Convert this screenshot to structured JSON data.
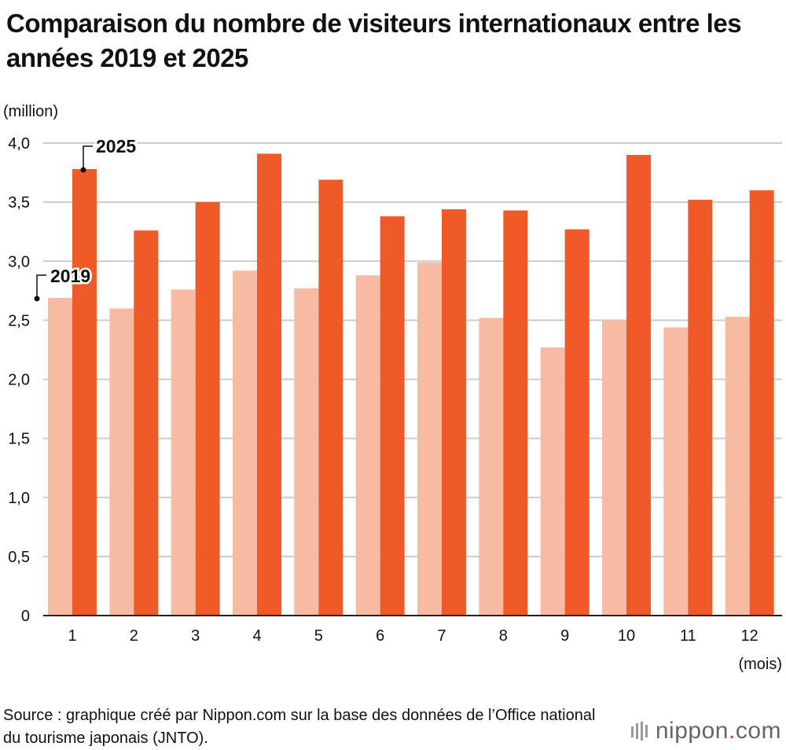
{
  "title": "Comparaison du nombre de visiteurs internationaux entre les années 2019 et 2025",
  "source": "Source : graphique créé par Nippon.com sur la base des données de l’Office national du tourisme japonais (JNTO).",
  "brand": {
    "name": "nippon",
    "dot": ".",
    "suffix": "com"
  },
  "colors": {
    "series_2019": "#f7bba4",
    "series_2025": "#f05a28",
    "grid": "#cccccc",
    "axis": "#222222"
  },
  "chart_data": {
    "type": "bar",
    "title": "Comparaison du nombre de visiteurs internationaux entre les années 2019 et 2025",
    "ylabel": "(million)",
    "xlabel": "(mois)",
    "ylim": [
      0,
      4.0
    ],
    "yticks": [
      "0",
      "0,5",
      "1,0",
      "1,5",
      "2,0",
      "2,5",
      "3,0",
      "3,5",
      "4,0"
    ],
    "ytick_values": [
      0,
      0.5,
      1.0,
      1.5,
      2.0,
      2.5,
      3.0,
      3.5,
      4.0
    ],
    "categories": [
      "1",
      "2",
      "3",
      "4",
      "5",
      "6",
      "7",
      "8",
      "9",
      "10",
      "11",
      "12"
    ],
    "series": [
      {
        "name": "2019",
        "values": [
          2.69,
          2.6,
          2.76,
          2.92,
          2.77,
          2.88,
          2.99,
          2.52,
          2.27,
          2.5,
          2.44,
          2.53
        ]
      },
      {
        "name": "2025",
        "values": [
          3.78,
          3.26,
          3.5,
          3.91,
          3.69,
          3.38,
          3.44,
          3.43,
          3.27,
          3.9,
          3.52,
          3.6
        ]
      }
    ],
    "grid": true
  }
}
